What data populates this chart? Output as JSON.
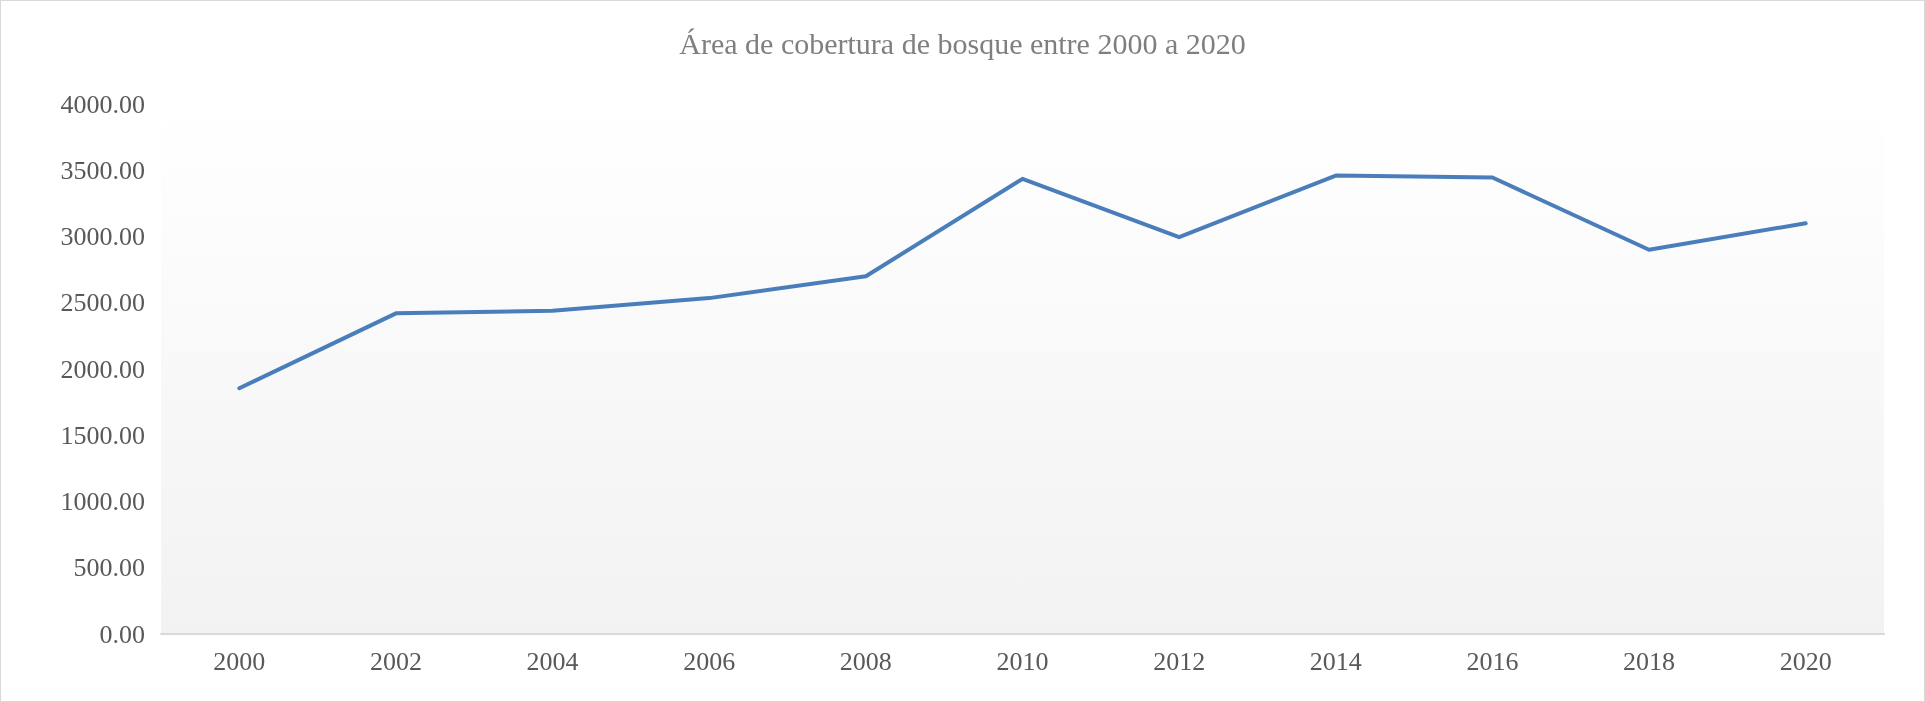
{
  "chart_data": {
    "type": "line",
    "title": "Área de cobertura de bosque entre 2000 a 2020",
    "categories": [
      "2000",
      "2002",
      "2004",
      "2006",
      "2008",
      "2010",
      "2012",
      "2014",
      "2016",
      "2018",
      "2020"
    ],
    "series": [
      {
        "color": "#4a7ebb",
        "values": [
          1855,
          2420,
          2439,
          2535,
          2700,
          3435,
          2995,
          3460,
          3445,
          2900,
          3100
        ]
      }
    ],
    "ylim": [
      0,
      4000
    ],
    "yticks": [
      {
        "value": 0,
        "label": "0.00"
      },
      {
        "value": 500,
        "label": "500.00"
      },
      {
        "value": 1000,
        "label": "1000.00"
      },
      {
        "value": 1500,
        "label": "1500.00"
      },
      {
        "value": 2000,
        "label": "2000.00"
      },
      {
        "value": 2500,
        "label": "2500.00"
      },
      {
        "value": 3000,
        "label": "3000.00"
      },
      {
        "value": 3500,
        "label": "3500.00"
      },
      {
        "value": 4000,
        "label": "4000.00"
      }
    ],
    "grid": false,
    "marker": "none",
    "line_style": "solid"
  }
}
